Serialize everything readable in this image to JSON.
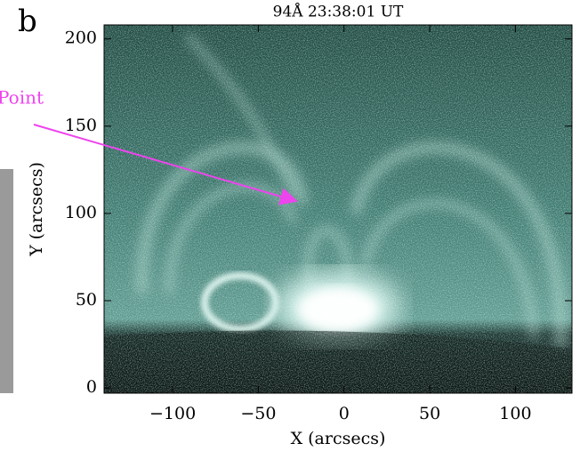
{
  "chart_data": {
    "type": "image",
    "panel_label": "b",
    "title": "94Å  23:38:01 UT",
    "annotation": "Point",
    "x_label": "X (arcsecs)",
    "y_label": "Y (arcsecs)",
    "xlim": [
      -140,
      133
    ],
    "ylim": [
      -3,
      208
    ],
    "xticks": [
      {
        "value": -100,
        "label": "−100"
      },
      {
        "value": -50,
        "label": "−50"
      },
      0,
      50,
      100
    ],
    "yticks": [
      0,
      50,
      100,
      150,
      200
    ],
    "annotation_color": "#ee44ee"
  }
}
